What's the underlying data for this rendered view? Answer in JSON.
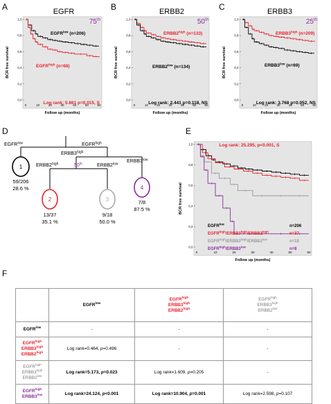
{
  "panel_letters": {
    "a": "A",
    "b": "B",
    "c": "C",
    "d": "D",
    "e": "E",
    "f": "F"
  },
  "y_axis_label": "BCR free survival",
  "x_axis_label": "Follow up (months)",
  "y_ticks": [
    "1,0",
    "0,8",
    "0,6",
    "0,4",
    "0,2",
    "0,0"
  ],
  "x_ticks": [
    "0",
    "10",
    "20",
    "30",
    "40",
    "50",
    "60"
  ],
  "colors": {
    "red": "#e8202a",
    "purple": "#8a2b9b",
    "gray": "#999999",
    "black": "#000000",
    "bg": "#e5e5e5"
  },
  "panels": {
    "A": {
      "title": "EGFR",
      "percentile": "75",
      "percentile_suffix": "th",
      "legend1_gene": "EGFR",
      "legend1_sup": "low",
      "legend1_n": " (n=206)",
      "legend2_gene": "EGFR",
      "legend2_sup": "high",
      "legend2_n": " (n=68)",
      "logrank": "Log rank: 5.861 p=0.015, S"
    },
    "B": {
      "title": "ERBB2",
      "percentile": "50",
      "percentile_suffix": "th",
      "legend1_gene": "ERBB2",
      "legend1_sup": "high",
      "legend1_n": " (n=133)",
      "legend2_gene": "ERBB2",
      "legend2_sup": "low",
      "legend2_n": " (n=134)",
      "logrank": "Log rank: 2.441 p=0.118, NS"
    },
    "C": {
      "title": "ERBB3",
      "percentile": "25",
      "percentile_suffix": "th",
      "legend1_gene": "ERBB3",
      "legend1_sup": "high",
      "legend1_n": " (n=209)",
      "legend2_gene": "ERBB3",
      "legend2_sup": "low",
      "legend2_n": " (n=69)",
      "logrank": "Log rank: 3.768 p=0.052, NS"
    },
    "E": {
      "logrank": "Log rank: 25.295, p<0.001, S",
      "legend": [
        {
          "label": "EGFR",
          "sup": "low",
          "n": "n=206"
        },
        {
          "label": "EGFR",
          "sup": "high",
          "label2": "/ERBB3",
          "sup2": "high",
          "label3": "/ERBB2",
          "sup3": "high",
          "n": "n=37"
        },
        {
          "label": "EGFR",
          "sup": "high",
          "label2": "/ERBB3",
          "sup2": "high",
          "label3": "/ERBB2",
          "sup3": "low",
          "n": "n=18"
        },
        {
          "label": "EGFR",
          "sup": "high",
          "label2": "/ERBB3",
          "sup2": "low",
          "n": "n=8"
        }
      ]
    }
  },
  "tree": {
    "egfr_low": "EGFR",
    "egfr_low_sup": "low",
    "egfr_high": "EGFR",
    "egfr_high_sup": "high",
    "erbb3_high": "ERBB3",
    "erbb3_high_sup": "high",
    "erbb3_low": "ERBB3",
    "erbb3_low_sup": "low",
    "erbb2_high": "ERBB2",
    "erbb2_high_sup": "high",
    "erbb2_low": "ERBB2",
    "erbb2_low_sup": "low",
    "split_pct": "50",
    "split_pct_sup": "th",
    "nodes": [
      {
        "num": "1",
        "count": "59/206",
        "pct": "28.6 %"
      },
      {
        "num": "2",
        "count": "13/37",
        "pct": "35.1 %"
      },
      {
        "num": "3",
        "count": "9/18",
        "pct": "50.0 %"
      },
      {
        "num": "4",
        "count": "7/8",
        "pct": "87.5 %"
      }
    ]
  },
  "table": {
    "col_headers": {
      "c1": {
        "l1": "EGFR",
        "s1": "low"
      },
      "c2": {
        "l1": "EGFR",
        "s1": "high",
        "l2": "ERBB3",
        "s2": "high",
        "l3": "ERBB2",
        "s3": "high"
      },
      "c3": {
        "l1": "EGFR",
        "s1": "high",
        "l2": "ERBB3",
        "s2": "high",
        "l3": "ERBB2",
        "s3": "low"
      }
    },
    "row_headers": {
      "r1": {
        "l1": "EGFR",
        "s1": "low"
      },
      "r2": {
        "l1": "EGFR",
        "s1": "high",
        "l2": "ERBB3",
        "s2": "high",
        "l3": "ERBB2",
        "s3": "high"
      },
      "r3": {
        "l1": "EGFR",
        "s1": "high",
        "l2": "ERBB3",
        "s2": "high",
        "l3": "ERBB2",
        "s3": "low"
      },
      "r4": {
        "l1": "EGFR",
        "s1": "high",
        "l2": "ERBB3",
        "s2": "low"
      }
    },
    "dash": "-",
    "cells": {
      "r2c1": {
        "pre": "Log rank=0.464, ",
        "p": "p",
        "post": "=0.496"
      },
      "r3c1": {
        "pre": "Log rank=5.173, ",
        "p": "p",
        "post": "=0.023"
      },
      "r3c2": {
        "pre": "Log rank=1.609, ",
        "p": "p",
        "post": "=0.205"
      },
      "r4c1": {
        "pre": "Log rank=24.124, ",
        "p": "p",
        "post": "<0.001"
      },
      "r4c2": {
        "pre": "Log rank=10.904, ",
        "p": "p",
        "post": "=0.001"
      },
      "r4c3": {
        "pre": "Log rank=2.598, ",
        "p": "p",
        "post": "=0.107"
      }
    }
  },
  "chart_data": [
    {
      "type": "line",
      "panel": "A",
      "title": "EGFR",
      "xlabel": "Follow up (months)",
      "ylabel": "BCR free survival",
      "xlim": [
        0,
        60
      ],
      "ylim": [
        0,
        1
      ],
      "series": [
        {
          "name": "EGFRlow (n=206)",
          "color": "#000000",
          "x": [
            0,
            2,
            5,
            8,
            10,
            14,
            18,
            22,
            26,
            30,
            35,
            40,
            45,
            50,
            55,
            60
          ],
          "y": [
            1.0,
            0.93,
            0.86,
            0.82,
            0.79,
            0.77,
            0.75,
            0.74,
            0.73,
            0.72,
            0.71,
            0.7,
            0.69,
            0.68,
            0.67,
            0.67
          ]
        },
        {
          "name": "EGFRhigh (n=68)",
          "color": "#e8202a",
          "x": [
            0,
            2,
            4,
            6,
            8,
            10,
            14,
            18,
            22,
            26,
            30,
            35,
            40,
            50,
            55,
            60
          ],
          "y": [
            1.0,
            0.9,
            0.82,
            0.76,
            0.72,
            0.69,
            0.66,
            0.63,
            0.62,
            0.6,
            0.59,
            0.58,
            0.57,
            0.55,
            0.54,
            0.53
          ]
        }
      ]
    },
    {
      "type": "line",
      "panel": "B",
      "title": "ERBB2",
      "xlabel": "Follow up (months)",
      "ylabel": "BCR free survival",
      "xlim": [
        0,
        60
      ],
      "ylim": [
        0,
        1
      ],
      "series": [
        {
          "name": "ERBB2high (n=133)",
          "color": "#e8202a",
          "x": [
            0,
            2,
            5,
            8,
            10,
            14,
            18,
            22,
            26,
            30,
            35,
            40,
            45,
            50,
            55,
            60
          ],
          "y": [
            1.0,
            0.95,
            0.9,
            0.86,
            0.83,
            0.81,
            0.79,
            0.77,
            0.76,
            0.75,
            0.74,
            0.73,
            0.72,
            0.71,
            0.7,
            0.7
          ]
        },
        {
          "name": "ERBB2low (n=134)",
          "color": "#000000",
          "x": [
            0,
            2,
            5,
            8,
            10,
            14,
            18,
            22,
            26,
            30,
            35,
            40,
            45,
            50,
            55,
            60
          ],
          "y": [
            1.0,
            0.93,
            0.86,
            0.82,
            0.79,
            0.77,
            0.75,
            0.73,
            0.72,
            0.71,
            0.7,
            0.69,
            0.68,
            0.67,
            0.66,
            0.66
          ]
        }
      ]
    },
    {
      "type": "line",
      "panel": "C",
      "title": "ERBB3",
      "xlabel": "Follow up (months)",
      "ylabel": "BCR free survival",
      "xlim": [
        0,
        60
      ],
      "ylim": [
        0,
        1
      ],
      "series": [
        {
          "name": "ERBB3high (n=209)",
          "color": "#e8202a",
          "x": [
            0,
            2,
            5,
            8,
            10,
            14,
            18,
            22,
            26,
            30,
            35,
            40,
            45,
            50,
            55,
            60
          ],
          "y": [
            1.0,
            0.96,
            0.92,
            0.88,
            0.86,
            0.84,
            0.82,
            0.8,
            0.79,
            0.78,
            0.77,
            0.76,
            0.75,
            0.74,
            0.73,
            0.72
          ]
        },
        {
          "name": "ERBB3low (n=69)",
          "color": "#000000",
          "x": [
            0,
            2,
            5,
            8,
            10,
            14,
            18,
            22,
            26,
            30,
            35,
            40,
            45,
            50,
            55,
            60
          ],
          "y": [
            1.0,
            0.9,
            0.82,
            0.76,
            0.72,
            0.7,
            0.68,
            0.66,
            0.65,
            0.64,
            0.62,
            0.61,
            0.6,
            0.59,
            0.58,
            0.58
          ]
        }
      ]
    },
    {
      "type": "line",
      "panel": "E",
      "xlabel": "Follow up (months)",
      "ylabel": "BCR free survival",
      "xlim": [
        0,
        60
      ],
      "ylim": [
        0,
        1
      ],
      "series": [
        {
          "name": "EGFRlow n=206",
          "color": "#000000",
          "x": [
            0,
            2,
            5,
            8,
            10,
            14,
            18,
            22,
            26,
            30,
            35,
            40,
            45,
            50,
            55,
            60
          ],
          "y": [
            1.0,
            0.95,
            0.89,
            0.85,
            0.83,
            0.81,
            0.79,
            0.77,
            0.76,
            0.75,
            0.74,
            0.73,
            0.72,
            0.71,
            0.7,
            0.7
          ]
        },
        {
          "name": "EGFRhigh/ERBB3high/ERBB2high n=37",
          "color": "#e8202a",
          "x": [
            0,
            3,
            6,
            10,
            15,
            20,
            25,
            30,
            35,
            40,
            45,
            50,
            55,
            60
          ],
          "y": [
            1.0,
            0.92,
            0.86,
            0.82,
            0.78,
            0.76,
            0.74,
            0.72,
            0.7,
            0.69,
            0.68,
            0.67,
            0.65,
            0.65
          ]
        },
        {
          "name": "EGFRhigh/ERBB3high/ERBB2low n=18",
          "color": "#999999",
          "x": [
            0,
            2,
            4,
            8,
            12,
            18,
            22,
            30,
            40,
            50,
            60
          ],
          "y": [
            1.0,
            0.89,
            0.83,
            0.72,
            0.67,
            0.61,
            0.55,
            0.5,
            0.5,
            0.5,
            0.5
          ]
        },
        {
          "name": "EGFRhigh/ERBB3low n=8",
          "color": "#8a2b9b",
          "x": [
            0,
            2,
            4,
            6,
            10,
            14,
            18,
            20,
            30,
            40,
            50,
            60
          ],
          "y": [
            1.0,
            0.88,
            0.75,
            0.62,
            0.5,
            0.38,
            0.25,
            0.13,
            0.13,
            0.13,
            0.13,
            0.13
          ]
        }
      ]
    }
  ]
}
